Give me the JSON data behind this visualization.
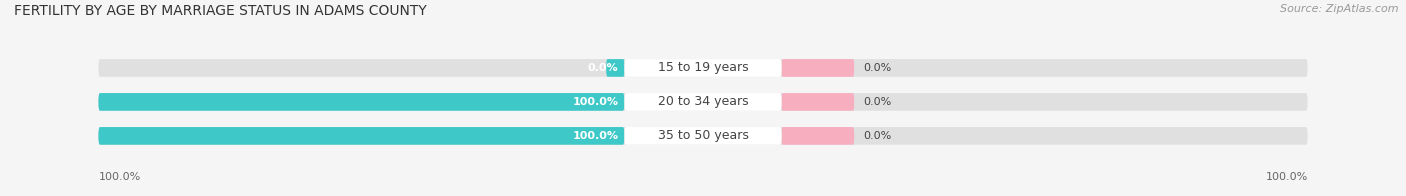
{
  "title": "FERTILITY BY AGE BY MARRIAGE STATUS IN ADAMS COUNTY",
  "source": "Source: ZipAtlas.com",
  "categories": [
    "15 to 19 years",
    "20 to 34 years",
    "35 to 50 years"
  ],
  "married_pct": [
    0.0,
    100.0,
    100.0
  ],
  "unmarried_pct": [
    0.0,
    0.0,
    0.0
  ],
  "married_color": "#3ec8c8",
  "unmarried_color": "#f7afc0",
  "bar_bg_color": "#e0e0e0",
  "title_fontsize": 10,
  "label_fontsize": 8,
  "category_fontsize": 9,
  "source_fontsize": 8,
  "legend_fontsize": 9,
  "bar_label_fontsize": 8,
  "background_color": "#f5f5f5",
  "text_color": "#444444",
  "source_color": "#999999",
  "bottom_label_color": "#666666"
}
